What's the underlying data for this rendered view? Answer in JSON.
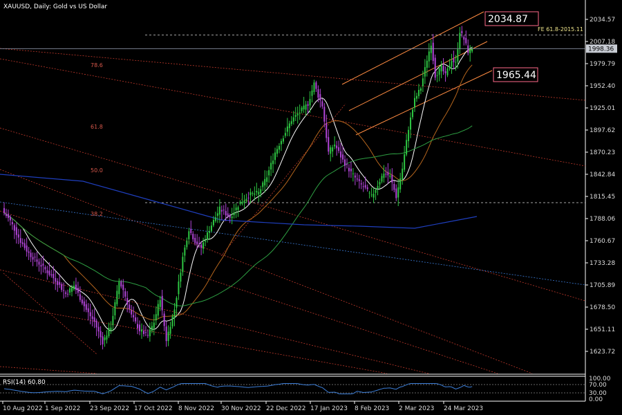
{
  "chart_data": {
    "type": "candlestick",
    "title": "XAUUSD, Daily:  Gold vs US Dollar",
    "y_ticks": [
      2034.57,
      2007.18,
      1979.79,
      1952.4,
      1925.01,
      1897.62,
      1870.23,
      1842.84,
      1815.45,
      1788.06,
      1760.67,
      1733.28,
      1705.89,
      1678.5,
      1651.11,
      1623.72
    ],
    "ylim": [
      1603,
      2050
    ],
    "x_ticks": [
      "10 Aug 2022",
      "1 Sep 2022",
      "23 Sep 2022",
      "17 Oct 2022",
      "8 Nov 2022",
      "30 Nov 2022",
      "22 Dec 2022",
      "17 Jan 2023",
      "8 Feb 2023",
      "2 Mar 2023",
      "24 Mar 2023"
    ],
    "current_price": "1998.36",
    "fe_label": "FE 61.8-2015.11",
    "fe_level": 2015.11,
    "high_label": "2034.87",
    "low_label": "1965.44",
    "fib_labels": [
      "78.6",
      "61.8",
      "50.0",
      "38.2"
    ],
    "close_anchors": [
      [
        0,
        1795
      ],
      [
        3,
        1785
      ],
      [
        8,
        1760
      ],
      [
        12,
        1745
      ],
      [
        18,
        1730
      ],
      [
        25,
        1712
      ],
      [
        30,
        1695
      ],
      [
        34,
        1705
      ],
      [
        37,
        1690
      ],
      [
        40,
        1675
      ],
      [
        44,
        1660
      ],
      [
        48,
        1635
      ],
      [
        52,
        1655
      ],
      [
        56,
        1710
      ],
      [
        58,
        1700
      ],
      [
        62,
        1668
      ],
      [
        66,
        1650
      ],
      [
        70,
        1643
      ],
      [
        73,
        1660
      ],
      [
        76,
        1690
      ],
      [
        79,
        1638
      ],
      [
        83,
        1676
      ],
      [
        87,
        1740
      ],
      [
        90,
        1775
      ],
      [
        93,
        1760
      ],
      [
        96,
        1752
      ],
      [
        100,
        1775
      ],
      [
        105,
        1800
      ],
      [
        110,
        1790
      ],
      [
        115,
        1808
      ],
      [
        120,
        1818
      ],
      [
        124,
        1820
      ],
      [
        128,
        1840
      ],
      [
        132,
        1870
      ],
      [
        136,
        1890
      ],
      [
        140,
        1910
      ],
      [
        144,
        1920
      ],
      [
        148,
        1930
      ],
      [
        151,
        1955
      ],
      [
        153,
        1940
      ],
      [
        155,
        1928
      ],
      [
        158,
        1870
      ],
      [
        161,
        1880
      ],
      [
        165,
        1860
      ],
      [
        169,
        1845
      ],
      [
        173,
        1832
      ],
      [
        176,
        1825
      ],
      [
        179,
        1815
      ],
      [
        182,
        1830
      ],
      [
        185,
        1845
      ],
      [
        188,
        1840
      ],
      [
        191,
        1815
      ],
      [
        194,
        1850
      ],
      [
        197,
        1900
      ],
      [
        200,
        1935
      ],
      [
        203,
        1950
      ],
      [
        206,
        1985
      ],
      [
        208,
        2005
      ],
      [
        210,
        1965
      ],
      [
        213,
        1975
      ],
      [
        215,
        1965
      ],
      [
        218,
        1985
      ],
      [
        220,
        1980
      ],
      [
        222,
        2020
      ],
      [
        224,
        2010
      ],
      [
        226,
        1995
      ],
      [
        228,
        1998.36
      ]
    ],
    "rsi": {
      "label": "RSI(14) 60.80",
      "scale_labels": [
        "100.00",
        "70.00",
        "30.00",
        "0.00"
      ],
      "levels": [
        70,
        30
      ],
      "value": 60.8
    }
  }
}
